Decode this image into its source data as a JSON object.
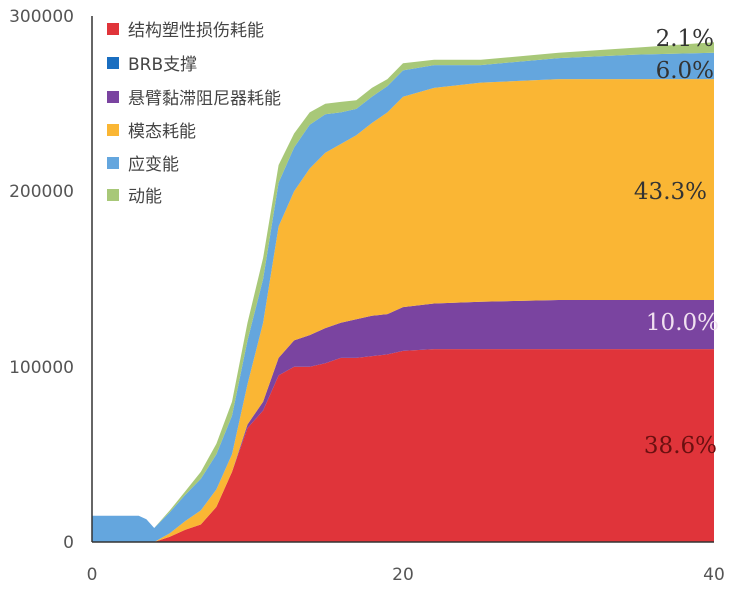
{
  "chart_data": {
    "type": "area",
    "stacked": true,
    "x_ticks": [
      "0",
      "20",
      "40"
    ],
    "y_ticks": [
      "0",
      "100000",
      "200000",
      "300000"
    ],
    "xlim": [
      0,
      40
    ],
    "ylim": [
      0,
      300000
    ],
    "grid": false,
    "legend_position": "top-left",
    "x": [
      0,
      3,
      3.5,
      4,
      5,
      6,
      7,
      8,
      9,
      10,
      11,
      12,
      13,
      14,
      15,
      16,
      17,
      18,
      19,
      20,
      22,
      25,
      30,
      35,
      40
    ],
    "series": [
      {
        "name": "结构塑性损伤耗能",
        "color": "#e0343a",
        "values": [
          0,
          0,
          0,
          0,
          3000,
          7000,
          10000,
          20000,
          40000,
          65000,
          75000,
          95000,
          100000,
          100000,
          102000,
          105000,
          105000,
          106000,
          107000,
          109000,
          110000,
          110000,
          110000,
          110000,
          110000
        ]
      },
      {
        "name": "BRB支撑",
        "color": "#1a6ec0",
        "values": [
          0,
          0,
          0,
          0,
          0,
          0,
          0,
          0,
          0,
          0,
          0,
          0,
          0,
          0,
          0,
          0,
          0,
          0,
          0,
          0,
          0,
          0,
          0,
          0,
          0
        ]
      },
      {
        "name": "悬臂黏滞阻尼器耗能",
        "color": "#7a44a0",
        "values": [
          0,
          0,
          0,
          0,
          0,
          0,
          0,
          0,
          0,
          2000,
          5000,
          10000,
          15000,
          18000,
          20000,
          20000,
          22000,
          23000,
          23000,
          25000,
          26000,
          27000,
          28000,
          28000,
          28000
        ]
      },
      {
        "name": "模态耗能",
        "color": "#fab634",
        "values": [
          0,
          0,
          0,
          0,
          2000,
          5000,
          8000,
          10000,
          10000,
          23000,
          45000,
          75000,
          85000,
          95000,
          100000,
          102000,
          105000,
          110000,
          115000,
          120000,
          123000,
          125000,
          126000,
          126000,
          126000
        ]
      },
      {
        "name": "应变能",
        "color": "#64a6de",
        "values": [
          15000,
          15000,
          13000,
          8000,
          12000,
          15000,
          18000,
          20000,
          22000,
          25000,
          25000,
          25000,
          25000,
          25000,
          22000,
          18000,
          15000,
          15000,
          15000,
          15000,
          13000,
          10000,
          12000,
          14000,
          15000
        ]
      },
      {
        "name": "动能",
        "color": "#a8c878",
        "values": [
          0,
          0,
          0,
          0,
          1000,
          2000,
          4000,
          6000,
          8000,
          10000,
          12000,
          10000,
          8000,
          7000,
          6000,
          6000,
          5000,
          5000,
          4000,
          4000,
          3000,
          3000,
          3000,
          4000,
          6000
        ]
      }
    ],
    "annotations": [
      {
        "text": "2.1%",
        "color": "#333333"
      },
      {
        "text": "6.0%",
        "color": "#333333"
      },
      {
        "text": "43.3%",
        "color": "#333333"
      },
      {
        "text": "10.0%",
        "color": "#f0e0f0"
      },
      {
        "text": "38.6%",
        "color": "#6a1010"
      }
    ]
  }
}
